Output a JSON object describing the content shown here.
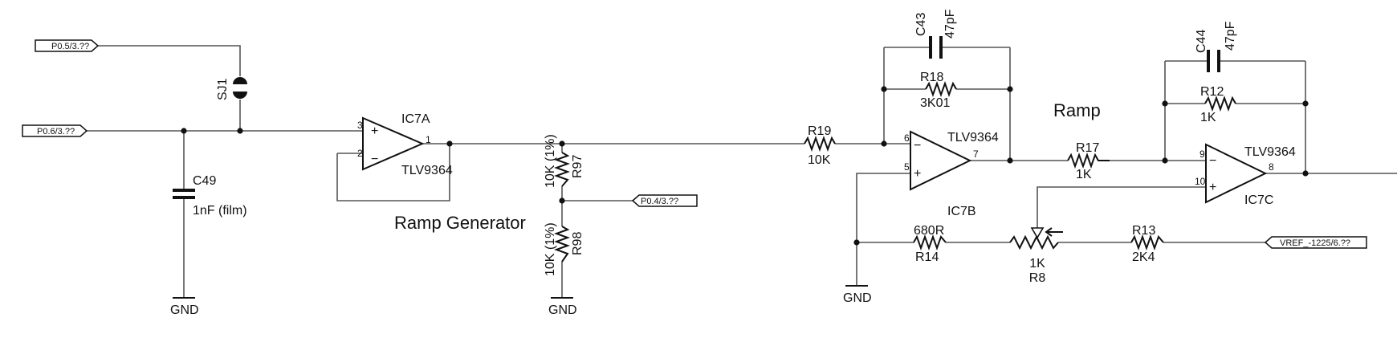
{
  "nets": {
    "p05": "P0.5/3.??",
    "p06": "P0.6/3.??",
    "p04": "P0.4/3.??",
    "vref": "VREF_-1225/6.??",
    "gnd1": "GND",
    "gnd2": "GND",
    "gnd3": "GND"
  },
  "titles": {
    "ramp_generator": "Ramp Generator",
    "ramp": "Ramp"
  },
  "parts": {
    "sj1": {
      "ref": "SJ1"
    },
    "c49": {
      "ref": "C49",
      "value": "1nF (film)"
    },
    "ic7a": {
      "ref": "IC7A",
      "value": "TLV9364",
      "pin_plus": "3",
      "pin_minus": "2",
      "pin_out": "1",
      "sign_plus": "+",
      "sign_minus": "−"
    },
    "r97": {
      "ref": "R97",
      "value": "10K (1%)"
    },
    "r98": {
      "ref": "R98",
      "value": "10K (1%)"
    },
    "r19": {
      "ref": "R19",
      "value": "10K"
    },
    "c43": {
      "ref": "C43",
      "value": "47pF"
    },
    "r18": {
      "ref": "R18",
      "value": "3K01"
    },
    "ic7b": {
      "ref": "IC7B",
      "value": "TLV9364",
      "pin_minus": "6",
      "pin_plus": "5",
      "pin_out": "7",
      "sign_plus": "+",
      "sign_minus": "−"
    },
    "r17": {
      "ref": "R17",
      "value": "1K"
    },
    "c44": {
      "ref": "C44",
      "value": "47pF"
    },
    "r12": {
      "ref": "R12",
      "value": "1K"
    },
    "ic7c": {
      "ref": "IC7C",
      "value": "TLV9364",
      "pin_minus": "9",
      "pin_plus": "10",
      "pin_out": "8",
      "sign_plus": "+",
      "sign_minus": "−"
    },
    "r14": {
      "ref": "R14",
      "value": "680R"
    },
    "r8": {
      "ref": "R8",
      "value": "1K"
    },
    "r13": {
      "ref": "R13",
      "value": "2K4"
    }
  }
}
